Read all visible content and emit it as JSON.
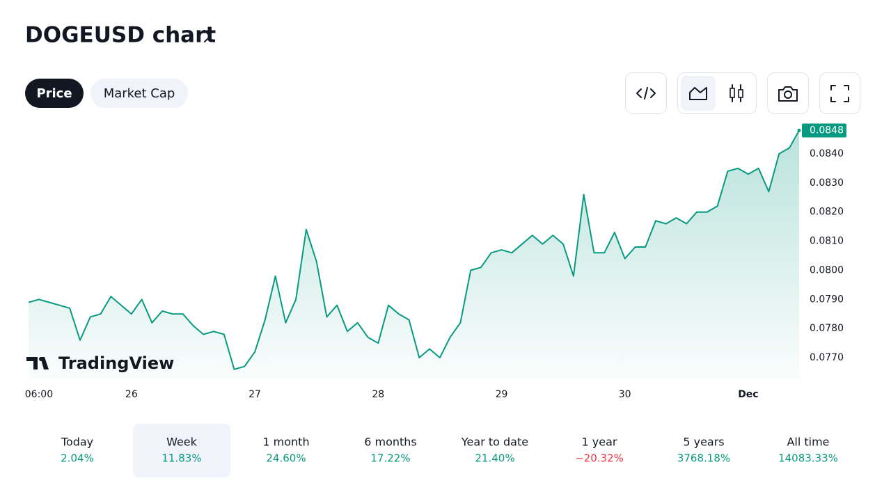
{
  "header": {
    "title": "DOGEUSD chart"
  },
  "tabs": [
    {
      "label": "Price",
      "active": true
    },
    {
      "label": "Market Cap",
      "active": false
    }
  ],
  "chart_data": {
    "type": "line",
    "x": [
      4,
      6,
      8,
      10,
      12,
      14,
      16,
      18,
      20,
      22,
      24,
      26,
      28,
      30,
      32,
      34,
      36,
      38,
      40,
      42,
      44,
      46,
      48,
      50,
      52,
      54,
      56,
      58,
      60,
      62,
      64,
      66,
      68,
      70,
      72,
      74,
      76,
      78,
      80,
      82,
      84,
      86,
      88,
      90,
      92,
      94,
      96,
      98,
      100,
      102,
      104,
      106,
      108,
      110,
      112,
      114,
      116,
      118,
      120,
      122,
      124,
      126,
      128,
      130,
      132,
      134,
      136,
      138,
      140,
      142,
      144,
      146,
      148,
      150,
      152,
      153.9
    ],
    "series": [
      {
        "name": "DOGEUSD",
        "color": "#089981",
        "values": [
          0.0789,
          0.079,
          0.0789,
          0.0788,
          0.0787,
          0.0776,
          0.0784,
          0.0785,
          0.0791,
          0.0788,
          0.0785,
          0.079,
          0.0782,
          0.0786,
          0.0785,
          0.0785,
          0.0781,
          0.0778,
          0.0779,
          0.0778,
          0.0766,
          0.0767,
          0.0772,
          0.0783,
          0.0798,
          0.0782,
          0.079,
          0.0814,
          0.0803,
          0.0784,
          0.0788,
          0.0779,
          0.0782,
          0.0777,
          0.0775,
          0.0788,
          0.0785,
          0.0783,
          0.077,
          0.0773,
          0.077,
          0.0777,
          0.0782,
          0.08,
          0.0801,
          0.0806,
          0.0807,
          0.0806,
          0.0809,
          0.0812,
          0.0809,
          0.0812,
          0.0809,
          0.0798,
          0.0826,
          0.0806,
          0.0806,
          0.0813,
          0.0804,
          0.0808,
          0.0808,
          0.0817,
          0.0816,
          0.0818,
          0.0816,
          0.082,
          0.082,
          0.0822,
          0.0834,
          0.0835,
          0.0833,
          0.0835,
          0.0827,
          0.084,
          0.0842,
          0.0848
        ]
      }
    ],
    "last_price": 0.0848,
    "xlim": [
      3.3,
      153.9
    ],
    "xticks": [
      {
        "value": 6,
        "label": "06:00"
      },
      {
        "value": 24,
        "label": "26"
      },
      {
        "value": 48,
        "label": "27"
      },
      {
        "value": 72,
        "label": "28"
      },
      {
        "value": 96,
        "label": "29"
      },
      {
        "value": 120,
        "label": "30"
      },
      {
        "value": 144,
        "label": "Dec"
      }
    ],
    "ylim": [
      0.07626,
      0.08486
    ],
    "yticks": [
      {
        "value": 0.077,
        "label": "0.0770"
      },
      {
        "value": 0.078,
        "label": "0.0780"
      },
      {
        "value": 0.079,
        "label": "0.0790"
      },
      {
        "value": 0.08,
        "label": "0.0800"
      },
      {
        "value": 0.081,
        "label": "0.0810"
      },
      {
        "value": 0.082,
        "label": "0.0820"
      },
      {
        "value": 0.083,
        "label": "0.0830"
      },
      {
        "value": 0.084,
        "label": "0.0840"
      }
    ],
    "watermark": "TradingView"
  },
  "stats": [
    {
      "period": "Today",
      "change": "2.04%",
      "color": "#089981",
      "active": false
    },
    {
      "period": "Week",
      "change": "11.83%",
      "color": "#089981",
      "active": true
    },
    {
      "period": "1 month",
      "change": "24.60%",
      "color": "#089981",
      "active": false
    },
    {
      "period": "6 months",
      "change": "17.22%",
      "color": "#089981",
      "active": false
    },
    {
      "period": "Year to date",
      "change": "21.40%",
      "color": "#089981",
      "active": false
    },
    {
      "period": "1 year",
      "change": "−20.32%",
      "color": "#f23645",
      "active": false
    },
    {
      "period": "5 years",
      "change": "3768.18%",
      "color": "#089981",
      "active": false
    },
    {
      "period": "All time",
      "change": "14083.33%",
      "color": "#089981",
      "active": false
    }
  ]
}
